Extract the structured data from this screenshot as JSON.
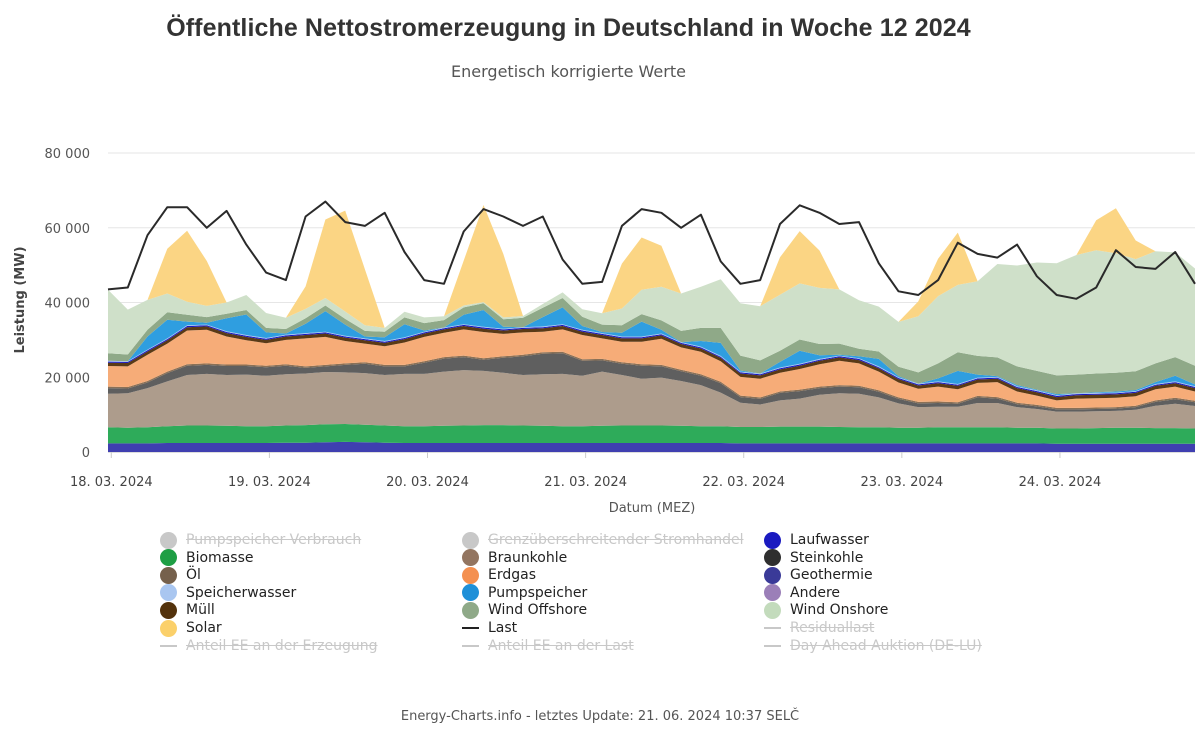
{
  "title": "Öffentliche Nettostromerzeugung in Deutschland in Woche 12 2024",
  "subtitle": "Energetisch korrigierte Werte",
  "footer": "Energy-Charts.info - letztes Update: 21. 06. 2024 10:37 SELČ",
  "chart_data": {
    "type": "area",
    "xlabel": "Datum (MEZ)",
    "ylabel": "Leistung (MW)",
    "ylim": [
      0,
      80000
    ],
    "y_ticks": [
      0,
      20000,
      40000,
      60000,
      80000
    ],
    "y_tick_labels": [
      "0",
      "20 000",
      "40 000",
      "60 000",
      "80 000"
    ],
    "x_tick_labels": [
      "18. 03. 2024",
      "19. 03. 2024",
      "20. 03. 2024",
      "21. 03. 2024",
      "22. 03. 2024",
      "23. 03. 2024",
      "24. 03. 2024"
    ],
    "x_hours": [
      0,
      3,
      6,
      9,
      12,
      15,
      18,
      21,
      24,
      27,
      30,
      33,
      36,
      39,
      42,
      45,
      48,
      51,
      54,
      57,
      60,
      63,
      66,
      69,
      72,
      75,
      78,
      81,
      84,
      87,
      90,
      93,
      96,
      99,
      102,
      105,
      108,
      111,
      114,
      117,
      120,
      123,
      126,
      129,
      132,
      135,
      138,
      141,
      144,
      147,
      150,
      153,
      156,
      159,
      162,
      165
    ],
    "grid": true,
    "series": [
      {
        "name": "Geothermie",
        "color": "#3f3fb0",
        "values": [
          2300,
          2300,
          2300,
          2400,
          2400,
          2400,
          2400,
          2400,
          2400,
          2500,
          2500,
          2600,
          2700,
          2600,
          2500,
          2400,
          2400,
          2400,
          2400,
          2400,
          2400,
          2400,
          2400,
          2400,
          2400,
          2400,
          2400,
          2400,
          2400,
          2400,
          2400,
          2400,
          2300,
          2300,
          2300,
          2300,
          2300,
          2300,
          2300,
          2300,
          2300,
          2300,
          2300,
          2300,
          2300,
          2300,
          2300,
          2300,
          2200,
          2200,
          2200,
          2200,
          2200,
          2200,
          2200,
          2200
        ]
      },
      {
        "name": "Biomasse",
        "color": "#2eab5a",
        "values": [
          4300,
          4200,
          4300,
          4500,
          4700,
          4700,
          4600,
          4500,
          4500,
          4600,
          4700,
          4800,
          4800,
          4700,
          4600,
          4500,
          4500,
          4600,
          4700,
          4800,
          4800,
          4700,
          4600,
          4500,
          4500,
          4600,
          4700,
          4700,
          4700,
          4600,
          4500,
          4500,
          4400,
          4400,
          4500,
          4500,
          4500,
          4400,
          4300,
          4300,
          4200,
          4200,
          4300,
          4300,
          4300,
          4300,
          4200,
          4200,
          4100,
          4100,
          4200,
          4300,
          4300,
          4200,
          4200,
          4100
        ]
      },
      {
        "name": "Braunkohle",
        "color": "#ad9c8c",
        "values": [
          9000,
          9200,
          10500,
          12000,
          13500,
          13800,
          13600,
          13800,
          13500,
          13700,
          13800,
          14000,
          13800,
          13800,
          13500,
          14000,
          14000,
          14500,
          14800,
          14500,
          14000,
          13500,
          13800,
          14000,
          13500,
          14500,
          13500,
          12500,
          12800,
          12000,
          11000,
          9000,
          6500,
          6000,
          7000,
          7500,
          8500,
          9000,
          9000,
          8000,
          6500,
          5500,
          5500,
          5500,
          6500,
          6500,
          5500,
          5000,
          4500,
          4500,
          4500,
          4500,
          4800,
          6000,
          6500,
          6000
        ]
      },
      {
        "name": "Steinkohle",
        "color": "#5f5f5f",
        "values": [
          1500,
          1300,
          1500,
          2200,
          2500,
          2400,
          2400,
          2300,
          2300,
          2300,
          1500,
          1500,
          2000,
          2500,
          2300,
          2000,
          3000,
          3500,
          3500,
          3000,
          4000,
          5000,
          5500,
          5500,
          4000,
          3000,
          3000,
          3500,
          3000,
          2600,
          2500,
          2500,
          1500,
          1500,
          2000,
          2000,
          1800,
          1800,
          1700,
          1500,
          1200,
          1000,
          1000,
          800,
          1500,
          1200,
          800,
          700,
          600,
          600,
          600,
          600,
          700,
          1000,
          1200,
          1000
        ]
      },
      {
        "name": "Öl",
        "color": "#8a7056",
        "values": [
          400,
          400,
          400,
          400,
          400,
          400,
          400,
          400,
          400,
          400,
          400,
          400,
          400,
          400,
          400,
          400,
          400,
          400,
          400,
          400,
          400,
          400,
          400,
          400,
          400,
          400,
          400,
          400,
          400,
          400,
          400,
          400,
          400,
          400,
          400,
          400,
          400,
          400,
          400,
          400,
          400,
          400,
          400,
          400,
          400,
          400,
          400,
          400,
          400,
          400,
          400,
          400,
          400,
          400,
          400,
          400
        ]
      },
      {
        "name": "Erdgas",
        "color": "#f6ac78",
        "values": [
          5500,
          5500,
          7000,
          7500,
          9000,
          9000,
          7500,
          6500,
          6000,
          6500,
          7500,
          7500,
          6000,
          5000,
          5000,
          6000,
          6500,
          6500,
          7000,
          7000,
          6000,
          6000,
          5500,
          6000,
          6500,
          5500,
          5500,
          6000,
          7000,
          6000,
          6000,
          5500,
          5000,
          5000,
          5000,
          5500,
          6000,
          6500,
          6000,
          5000,
          4000,
          3500,
          4000,
          3500,
          3500,
          4000,
          3000,
          2500,
          2000,
          2500,
          2500,
          2500,
          2500,
          3000,
          3000,
          2500
        ]
      },
      {
        "name": "Müll",
        "color": "#5a3a16",
        "values": [
          900,
          900,
          900,
          900,
          900,
          900,
          900,
          900,
          900,
          900,
          900,
          900,
          900,
          900,
          900,
          900,
          900,
          900,
          900,
          900,
          900,
          900,
          900,
          900,
          900,
          900,
          900,
          900,
          900,
          900,
          900,
          900,
          900,
          900,
          900,
          900,
          900,
          900,
          900,
          900,
          900,
          900,
          900,
          900,
          900,
          900,
          900,
          900,
          900,
          900,
          900,
          900,
          900,
          900,
          900,
          900
        ]
      },
      {
        "name": "Laufwasser",
        "color": "#1a1ac0",
        "values": [
          300,
          300,
          300,
          300,
          300,
          300,
          300,
          300,
          300,
          300,
          300,
          300,
          300,
          300,
          300,
          300,
          300,
          300,
          300,
          300,
          300,
          300,
          300,
          300,
          300,
          300,
          300,
          300,
          300,
          300,
          300,
          300,
          300,
          300,
          300,
          300,
          300,
          300,
          300,
          300,
          300,
          300,
          300,
          300,
          300,
          300,
          300,
          300,
          300,
          300,
          300,
          300,
          300,
          300,
          300,
          300
        ]
      },
      {
        "name": "Speicherwasser",
        "color": "#a9c6f0",
        "values": [
          200,
          200,
          200,
          200,
          200,
          200,
          200,
          200,
          200,
          200,
          200,
          200,
          200,
          200,
          200,
          200,
          200,
          200,
          200,
          200,
          200,
          200,
          200,
          200,
          200,
          200,
          200,
          200,
          200,
          200,
          200,
          200,
          200,
          200,
          200,
          200,
          200,
          200,
          200,
          200,
          200,
          200,
          200,
          200,
          200,
          200,
          200,
          200,
          200,
          200,
          200,
          200,
          200,
          200,
          200,
          200
        ]
      },
      {
        "name": "Pumpspeicher",
        "color": "#2f9ee0",
        "values": [
          0,
          0,
          3500,
          5000,
          1000,
          500,
          3500,
          5500,
          1500,
          300,
          2500,
          5500,
          3000,
          500,
          1000,
          3500,
          300,
          0,
          2500,
          4500,
          500,
          0,
          2500,
          4500,
          1000,
          300,
          1000,
          4000,
          1000,
          0,
          1500,
          3500,
          300,
          0,
          1500,
          3500,
          1000,
          200,
          500,
          2000,
          300,
          0,
          800,
          3500,
          800,
          200,
          300,
          200,
          300,
          0,
          200,
          300,
          300,
          500,
          1500,
          500
        ]
      },
      {
        "name": "Wind Offshore",
        "color": "#8fa988",
        "values": [
          2000,
          1800,
          1800,
          2000,
          1800,
          1500,
          1200,
          1200,
          1200,
          1200,
          1500,
          1500,
          1500,
          1500,
          1500,
          1800,
          2000,
          2000,
          2000,
          1800,
          2000,
          2500,
          2500,
          2500,
          2500,
          2000,
          2000,
          2000,
          2500,
          3000,
          3500,
          4000,
          4000,
          3500,
          3000,
          3000,
          3000,
          3000,
          2000,
          2000,
          2500,
          3000,
          4000,
          5000,
          5000,
          5000,
          5000,
          5000,
          5000,
          5000,
          5000,
          5000,
          5000,
          5000,
          5000,
          5000
        ]
      },
      {
        "name": "Wind Onshore",
        "color": "#cfe0c9",
        "values": [
          17000,
          12000,
          8000,
          5000,
          3500,
          3000,
          3000,
          4000,
          4000,
          3000,
          2500,
          2000,
          2000,
          1500,
          1000,
          1500,
          1500,
          1000,
          500,
          300,
          500,
          500,
          1000,
          1500,
          2000,
          3000,
          4500,
          6500,
          9000,
          10000,
          11000,
          13000,
          14000,
          14500,
          15000,
          15000,
          15000,
          14500,
          13000,
          12000,
          12000,
          15000,
          18000,
          18000,
          20000,
          25000,
          27000,
          29000,
          30000,
          32000,
          33000,
          32000,
          30000,
          30000,
          28000,
          26000
        ]
      },
      {
        "name": "Solar",
        "color": "#fbd584",
        "values": [
          0,
          0,
          0,
          12000,
          19000,
          12000,
          0,
          0,
          0,
          0,
          6000,
          21000,
          27000,
          15000,
          0,
          0,
          0,
          0,
          12000,
          26000,
          17000,
          0,
          0,
          0,
          0,
          0,
          12000,
          14000,
          11000,
          0,
          0,
          0,
          0,
          0,
          10000,
          14000,
          10000,
          0,
          0,
          0,
          0,
          4000,
          10000,
          14000,
          0,
          0,
          0,
          0,
          0,
          0,
          8000,
          12000,
          5000,
          0,
          0,
          0
        ]
      },
      {
        "name": "Last",
        "color": "#2a2a2a",
        "line": true,
        "values": [
          43500,
          44000,
          58000,
          65500,
          65500,
          60000,
          64500,
          55500,
          48000,
          46000,
          63000,
          67000,
          61500,
          60500,
          64000,
          53500,
          46000,
          45000,
          59000,
          65000,
          63000,
          60500,
          63000,
          51500,
          45000,
          45500,
          60500,
          65000,
          64000,
          60000,
          63500,
          51000,
          45000,
          46000,
          61000,
          66000,
          64000,
          61000,
          61500,
          50500,
          43000,
          42000,
          46000,
          56000,
          53000,
          52000,
          55500,
          47000,
          42000,
          41000,
          44000,
          54000,
          49500,
          49000,
          53500,
          45000
        ]
      }
    ],
    "legend": [
      {
        "label": "Pumpspeicher Verbrauch",
        "color": "#c8c8c8",
        "symbol": "dot",
        "hidden": true
      },
      {
        "label": "Grenzüberschreitender Stromhandel",
        "color": "#c8c8c8",
        "symbol": "dot",
        "hidden": true
      },
      {
        "label": "Laufwasser",
        "color": "#1a1ac0",
        "symbol": "dot",
        "hidden": false
      },
      {
        "label": "Biomasse",
        "color": "#1e9e44",
        "symbol": "dot",
        "hidden": false
      },
      {
        "label": "Braunkohle",
        "color": "#937560",
        "symbol": "dot",
        "hidden": false
      },
      {
        "label": "Steinkohle",
        "color": "#2f2f2f",
        "symbol": "dot",
        "hidden": false
      },
      {
        "label": "Öl",
        "color": "#75604c",
        "symbol": "dot",
        "hidden": false
      },
      {
        "label": "Erdgas",
        "color": "#f49050",
        "symbol": "dot",
        "hidden": false
      },
      {
        "label": "Geothermie",
        "color": "#3a3a98",
        "symbol": "dot",
        "hidden": false
      },
      {
        "label": "Speicherwasser",
        "color": "#a9c6f0",
        "symbol": "dot",
        "hidden": false
      },
      {
        "label": "Pumpspeicher",
        "color": "#1f90d8",
        "symbol": "dot",
        "hidden": false
      },
      {
        "label": "Andere",
        "color": "#9b7fb8",
        "symbol": "dot",
        "hidden": false
      },
      {
        "label": "Müll",
        "color": "#53320c",
        "symbol": "dot",
        "hidden": false
      },
      {
        "label": "Wind Offshore",
        "color": "#8fa988",
        "symbol": "dot",
        "hidden": false
      },
      {
        "label": "Wind Onshore",
        "color": "#c3dbbc",
        "symbol": "dot",
        "hidden": false
      },
      {
        "label": "Solar",
        "color": "#fbd06a",
        "symbol": "dot",
        "hidden": false
      },
      {
        "label": "Last",
        "color": "#222222",
        "symbol": "line",
        "hidden": false
      },
      {
        "label": "Residuallast",
        "color": "#c8c8c8",
        "symbol": "line",
        "hidden": true
      },
      {
        "label": "Anteil EE an der Erzeugung",
        "color": "#c8c8c8",
        "symbol": "line",
        "hidden": true
      },
      {
        "label": "Anteil EE an der Last",
        "color": "#c8c8c8",
        "symbol": "line",
        "hidden": true
      },
      {
        "label": "Day Ahead Auktion (DE-LU)",
        "color": "#c8c8c8",
        "symbol": "line",
        "hidden": true
      }
    ]
  }
}
